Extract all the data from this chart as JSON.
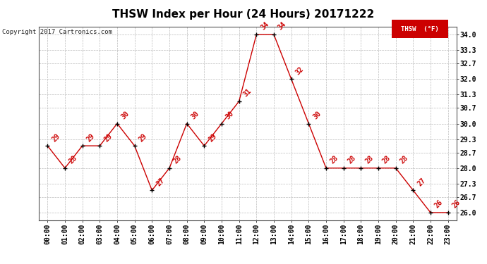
{
  "title": "THSW Index per Hour (24 Hours) 20171222",
  "copyright": "Copyright 2017 Cartronics.com",
  "legend_label": "THSW  (°F)",
  "hours": [
    0,
    1,
    2,
    3,
    4,
    5,
    6,
    7,
    8,
    9,
    10,
    11,
    12,
    13,
    14,
    15,
    16,
    17,
    18,
    19,
    20,
    21,
    22,
    23
  ],
  "x_labels": [
    "00:00",
    "01:00",
    "02:00",
    "03:00",
    "04:00",
    "05:00",
    "06:00",
    "07:00",
    "08:00",
    "09:00",
    "10:00",
    "11:00",
    "12:00",
    "13:00",
    "14:00",
    "15:00",
    "16:00",
    "17:00",
    "18:00",
    "19:00",
    "20:00",
    "21:00",
    "22:00",
    "23:00"
  ],
  "values": [
    29,
    28,
    29,
    29,
    30,
    29,
    27,
    28,
    30,
    29,
    30,
    31,
    34,
    34,
    32,
    30,
    28,
    28,
    28,
    28,
    28,
    27,
    26,
    26
  ],
  "line_color": "#cc0000",
  "marker_color": "#000000",
  "annotation_color": "#cc0000",
  "bg_color": "#ffffff",
  "grid_color": "#bbbbbb",
  "ytick_labels": [
    "26.0",
    "26.7",
    "27.3",
    "28.0",
    "28.7",
    "29.3",
    "30.0",
    "30.7",
    "31.3",
    "32.0",
    "32.7",
    "33.3",
    "34.0"
  ],
  "ytick_vals": [
    26.0,
    26.7,
    27.3,
    28.0,
    28.7,
    29.3,
    30.0,
    30.7,
    31.3,
    32.0,
    32.7,
    33.3,
    34.0
  ],
  "ylim_low": 25.65,
  "ylim_high": 34.35,
  "title_fontsize": 11,
  "axis_fontsize": 7,
  "annotation_fontsize": 7,
  "legend_bg": "#cc0000",
  "legend_text_color": "#ffffff"
}
